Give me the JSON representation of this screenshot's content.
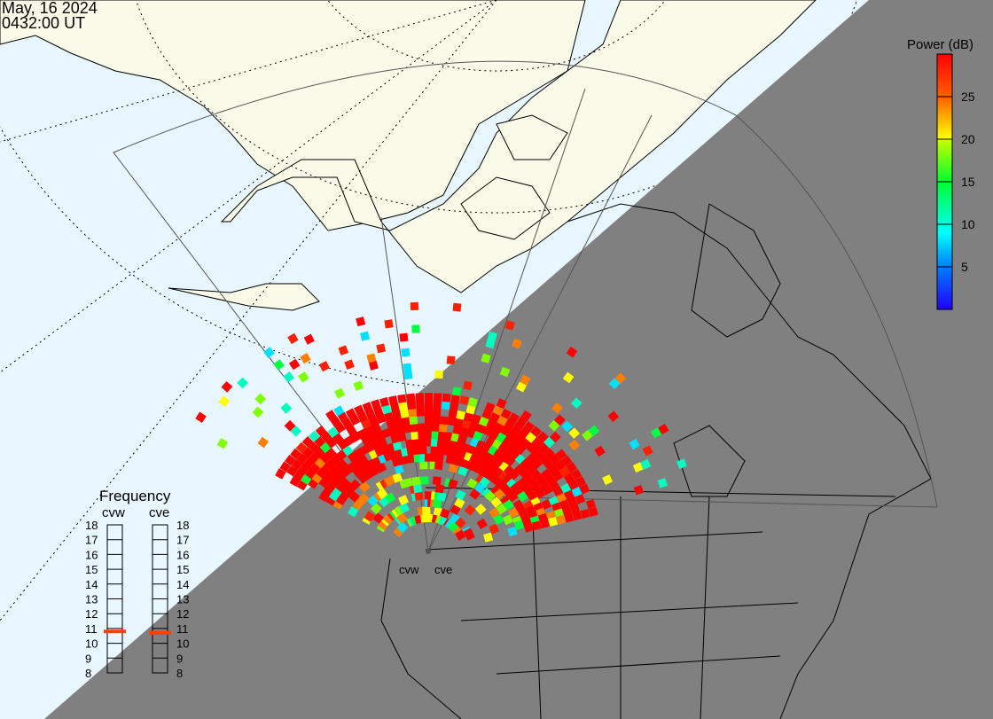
{
  "header": {
    "date": "May, 16 2024",
    "time": "0432:00 UT"
  },
  "colorbar": {
    "title": "Power (dB)",
    "ticks": [
      "25",
      "20",
      "15",
      "10",
      "5"
    ],
    "range": [
      0,
      30
    ],
    "colors": [
      "#2000ff",
      "#0080ff",
      "#00ffff",
      "#00ff40",
      "#80ff00",
      "#ffff00",
      "#ff8000",
      "#ff0000"
    ]
  },
  "frequency": {
    "title": "Frequency",
    "unit_range": [
      8,
      18
    ],
    "ticks": [
      "18",
      "17",
      "16",
      "15",
      "14",
      "13",
      "12",
      "11",
      "10",
      "9",
      "8"
    ],
    "radars": [
      {
        "name": "cvw",
        "value": 10.8
      },
      {
        "name": "cve",
        "value": 10.7
      }
    ],
    "marker_color": "#ff4000"
  },
  "sites": {
    "west": "cvw",
    "east": "cve"
  },
  "colors": {
    "ocean_day": "#e8f6ff",
    "land_day": "#fafae8",
    "night": "#808080"
  }
}
